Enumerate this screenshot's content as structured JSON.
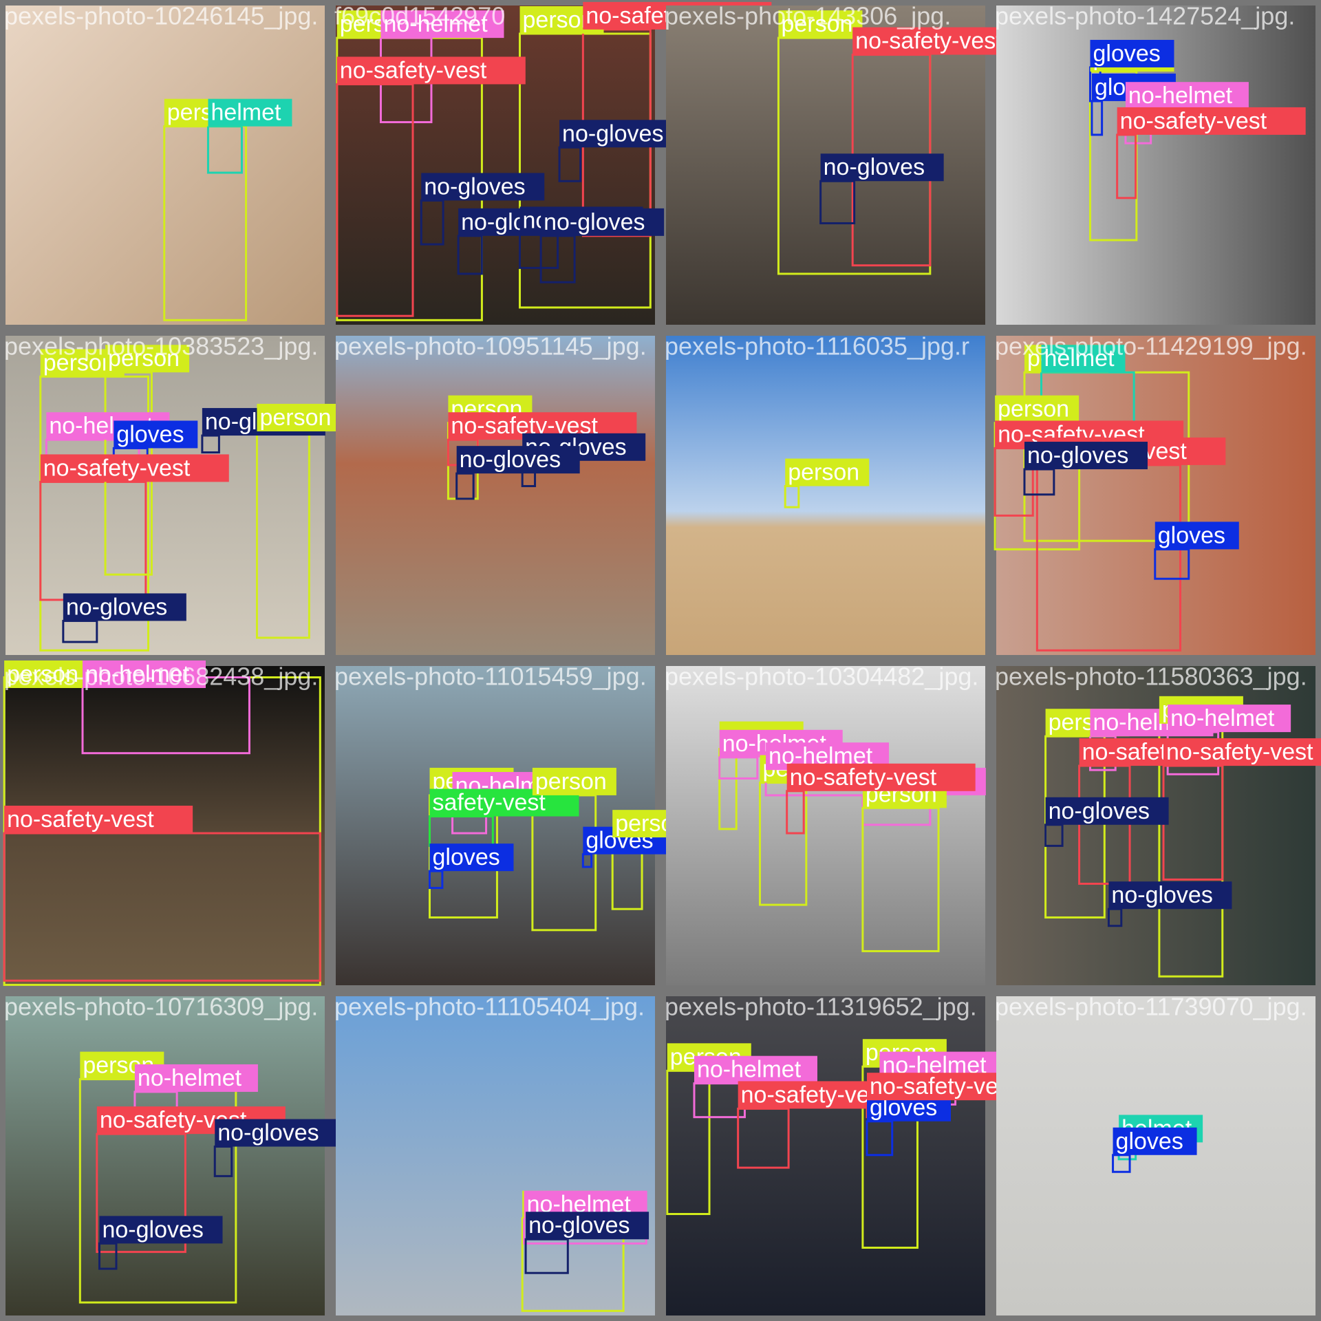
{
  "class_colors": {
    "person": "#d2ec1c",
    "no-helmet": "#f36bd9",
    "no-safety-vest": "#f2444f",
    "no-gloves": "#14206a",
    "gloves": "#0c2ee2",
    "helmet": "#1dd3b0",
    "safety-vest": "#27e43e"
  },
  "tiles": [
    {
      "title": "pexels-photo-10246145_jpg.",
      "detections": [
        "person",
        "helmet"
      ]
    },
    {
      "title": "f69c0d1542970",
      "detections": [
        "person",
        "no-helmet",
        "no-safety-vest",
        "no-gloves",
        "no-gloves",
        "person",
        "no-safety-vest",
        "no-gloves",
        "no-gloves",
        "no-gloves"
      ]
    },
    {
      "title": "pexels-photo-143306_jpg.",
      "detections": [
        "person",
        "no-safety-vest",
        "no-gloves"
      ]
    },
    {
      "title": "pexels-photo-1427524_jpg.",
      "detections": [
        "person",
        "gloves",
        "gloves",
        "no-helmet",
        "no-safety-vest"
      ]
    },
    {
      "title": "pexels-photo-10383523_jpg.",
      "detections": [
        "person",
        "no-helmet",
        "no-safety-vest",
        "no-gloves",
        "person",
        "no-gloves",
        "gloves",
        "person"
      ]
    },
    {
      "title": "pexels-photo-10951145_jpg.",
      "detections": [
        "person",
        "no-safety-vest",
        "no-gloves",
        "no-gloves"
      ]
    },
    {
      "title": "pexels-photo-1116035_jpg.r",
      "detections": [
        "person"
      ]
    },
    {
      "title": "pexels-photo-11429199_jpg.",
      "detections": [
        "person",
        "helmet",
        "person",
        "no-safety-vest",
        "no-safety-vest",
        "no-gloves",
        "gloves"
      ]
    },
    {
      "title": "pexels-photo-10682438_jpg.",
      "detections": [
        "person",
        "no-helmet",
        "no-safety-vest"
      ]
    },
    {
      "title": "pexels-photo-11015459_jpg.",
      "detections": [
        "person",
        "no-helmet",
        "safety-vest",
        "gloves",
        "person",
        "gloves",
        "person"
      ]
    },
    {
      "title": "pexels-photo-10304482_jpg.",
      "detections": [
        "person",
        "no-helmet",
        "person",
        "no-helmet",
        "no-helmet",
        "person",
        "no-safety-vest"
      ]
    },
    {
      "title": "pexels-photo-11580363_jpg.",
      "detections": [
        "person",
        "no-helmet",
        "no-safety-vest",
        "no-gloves",
        "person",
        "no-helmet",
        "no-safety-vest",
        "no-gloves"
      ]
    },
    {
      "title": "pexels-photo-10716309_jpg.",
      "detections": [
        "person",
        "no-helmet",
        "no-safety-vest",
        "no-gloves",
        "no-gloves"
      ]
    },
    {
      "title": "pexels-photo-11105404_jpg.",
      "detections": [
        "person",
        "no-helmet",
        "no-gloves"
      ]
    },
    {
      "title": "pexels-photo-11319652_jpg.",
      "detections": [
        "person",
        "no-helmet",
        "no-safety-vest",
        "person",
        "no-helmet",
        "gloves",
        "no-safety-vest"
      ]
    },
    {
      "title": "pexels-photo-11739070_jpg.",
      "detections": [
        "helmet",
        "gloves"
      ]
    }
  ]
}
